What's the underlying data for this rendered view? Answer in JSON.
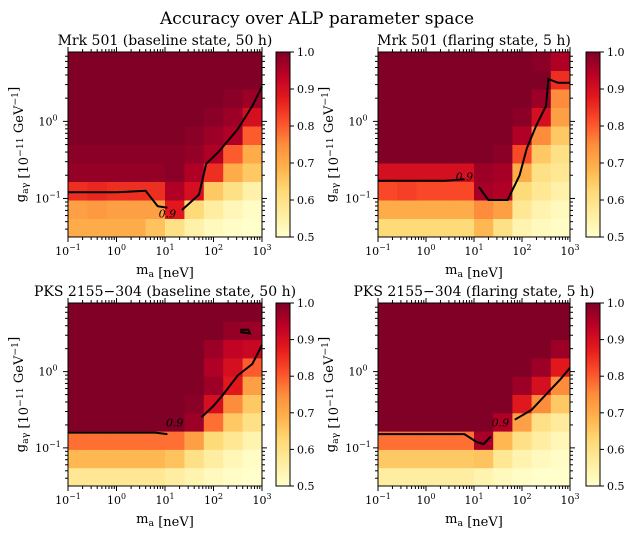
{
  "figure": {
    "suptitle": "Accuracy over ALP parameter space"
  },
  "colormap": {
    "name": "YlOrRd",
    "stops": [
      "#ffffcc",
      "#ffeda0",
      "#fed976",
      "#feb24c",
      "#fd8d3c",
      "#fc4e2a",
      "#e31a1c",
      "#bd0026",
      "#800026"
    ]
  },
  "chart_data": [
    {
      "type": "heatmap",
      "title": "Mrk 501 (baseline state, 50 h)",
      "xlabel": "m_a [neV]",
      "ylabel": "g_aγ [10^-11 GeV^-1]",
      "x_log_range": [
        -1,
        3
      ],
      "y_log_range": [
        -1.5,
        0.9
      ],
      "x_ticks": [
        "10^-1",
        "10^0",
        "10^1",
        "10^2",
        "10^3"
      ],
      "y_ticks": [
        "10^-1",
        "10^0"
      ],
      "colorbar_ticks": [
        "0.5",
        "0.6",
        "0.7",
        "0.8",
        "0.9",
        "1.0"
      ],
      "colorbar_range": [
        0.5,
        1.0
      ],
      "contour_label": "0.9",
      "grid_rows_low_to_high_g": [
        [
          0.7,
          0.7,
          0.7,
          0.7,
          0.66,
          0.6,
          0.55,
          0.52,
          0.51,
          0.5
        ],
        [
          0.72,
          0.73,
          0.72,
          0.72,
          0.72,
          0.88,
          0.62,
          0.56,
          0.53,
          0.51
        ],
        [
          0.85,
          0.86,
          0.85,
          0.85,
          0.85,
          0.95,
          0.9,
          0.65,
          0.6,
          0.55
        ],
        [
          0.98,
          0.98,
          0.98,
          0.98,
          0.98,
          0.99,
          0.95,
          0.85,
          0.7,
          0.65
        ],
        [
          0.99,
          0.99,
          0.99,
          0.99,
          0.99,
          0.99,
          0.98,
          0.95,
          0.8,
          0.7
        ],
        [
          1.0,
          1.0,
          1.0,
          1.0,
          1.0,
          1.0,
          0.99,
          0.97,
          0.95,
          0.8
        ],
        [
          1.0,
          1.0,
          1.0,
          1.0,
          1.0,
          1.0,
          1.0,
          0.99,
          0.97,
          0.9
        ],
        [
          1.0,
          1.0,
          1.0,
          1.0,
          1.0,
          1.0,
          1.0,
          1.0,
          0.99,
          0.97
        ],
        [
          1.0,
          1.0,
          1.0,
          1.0,
          1.0,
          1.0,
          1.0,
          1.0,
          1.0,
          1.0
        ],
        [
          1.0,
          1.0,
          1.0,
          1.0,
          1.0,
          1.0,
          1.0,
          1.0,
          1.0,
          1.0
        ]
      ],
      "contours": [
        [
          [
            -1.0,
            -0.92
          ],
          [
            0.0,
            -0.92
          ],
          [
            0.6,
            -0.9
          ],
          [
            0.85,
            -1.1
          ],
          [
            1.05,
            -1.12
          ]
        ],
        [
          [
            1.35,
            -1.15
          ],
          [
            1.7,
            -0.95
          ],
          [
            1.85,
            -0.55
          ],
          [
            2.1,
            -0.4
          ],
          [
            2.5,
            -0.1
          ],
          [
            2.8,
            0.2
          ],
          [
            3.0,
            0.45
          ]
        ]
      ],
      "contour_label_at": [
        1.05,
        -1.25
      ]
    },
    {
      "type": "heatmap",
      "title": "Mrk 501 (flaring state, 5 h)",
      "xlabel": "m_a [neV]",
      "ylabel": "g_aγ [10^-11 GeV^-1]",
      "x_log_range": [
        -1,
        3
      ],
      "y_log_range": [
        -1.5,
        0.9
      ],
      "x_ticks": [
        "10^-1",
        "10^0",
        "10^1",
        "10^2",
        "10^3"
      ],
      "y_ticks": [
        "10^-1",
        "10^0"
      ],
      "colorbar_ticks": [
        "0.5",
        "0.6",
        "0.7",
        "0.8",
        "0.9",
        "1.0"
      ],
      "colorbar_range": [
        0.5,
        1.0
      ],
      "contour_label": "0.9",
      "grid_rows_low_to_high_g": [
        [
          0.62,
          0.62,
          0.62,
          0.62,
          0.62,
          0.68,
          0.6,
          0.54,
          0.52,
          0.51
        ],
        [
          0.7,
          0.7,
          0.7,
          0.7,
          0.7,
          0.75,
          0.72,
          0.58,
          0.54,
          0.52
        ],
        [
          0.82,
          0.83,
          0.82,
          0.82,
          0.82,
          0.96,
          0.95,
          0.62,
          0.58,
          0.55
        ],
        [
          0.9,
          0.9,
          0.9,
          0.9,
          0.9,
          0.97,
          0.96,
          0.7,
          0.6,
          0.58
        ],
        [
          1.0,
          1.0,
          1.0,
          1.0,
          1.0,
          1.0,
          0.99,
          0.82,
          0.65,
          0.6
        ],
        [
          1.0,
          1.0,
          1.0,
          1.0,
          1.0,
          1.0,
          1.0,
          0.95,
          0.75,
          0.65
        ],
        [
          1.0,
          1.0,
          1.0,
          1.0,
          1.0,
          1.0,
          1.0,
          0.99,
          0.9,
          0.72
        ],
        [
          1.0,
          1.0,
          1.0,
          1.0,
          1.0,
          1.0,
          1.0,
          1.0,
          0.97,
          0.75
        ],
        [
          1.0,
          1.0,
          1.0,
          1.0,
          1.0,
          1.0,
          1.0,
          1.0,
          1.0,
          0.85
        ],
        [
          1.0,
          1.0,
          1.0,
          1.0,
          1.0,
          1.0,
          1.0,
          1.0,
          0.99,
          0.95
        ]
      ],
      "contours": [
        [
          [
            -1.0,
            -0.77
          ],
          [
            0.4,
            -0.77
          ],
          [
            0.8,
            -0.75
          ]
        ],
        [
          [
            1.1,
            -0.85
          ],
          [
            1.3,
            -1.02
          ],
          [
            1.7,
            -1.02
          ],
          [
            1.95,
            -0.7
          ],
          [
            2.1,
            -0.35
          ],
          [
            2.3,
            -0.05
          ],
          [
            2.5,
            0.2
          ],
          [
            2.55,
            0.55
          ],
          [
            2.75,
            0.5
          ],
          [
            3.0,
            0.5
          ]
        ]
      ],
      "contour_label_at": [
        0.8,
        -0.77
      ]
    },
    {
      "type": "heatmap",
      "title": "PKS 2155−304 (baseline state, 50 h)",
      "xlabel": "m_a [neV]",
      "ylabel": "g_aγ [10^-11 GeV^-1]",
      "x_log_range": [
        -1,
        3
      ],
      "y_log_range": [
        -1.5,
        0.9
      ],
      "x_ticks": [
        "10^-1",
        "10^0",
        "10^1",
        "10^2",
        "10^3"
      ],
      "y_ticks": [
        "10^-1",
        "10^0"
      ],
      "colorbar_ticks": [
        "0.5",
        "0.6",
        "0.7",
        "0.8",
        "0.9",
        "1.0"
      ],
      "colorbar_range": [
        0.5,
        1.0
      ],
      "contour_label": "0.9",
      "grid_rows_low_to_high_g": [
        [
          0.58,
          0.58,
          0.58,
          0.58,
          0.58,
          0.56,
          0.54,
          0.52,
          0.51,
          0.5
        ],
        [
          0.68,
          0.68,
          0.68,
          0.68,
          0.68,
          0.66,
          0.6,
          0.56,
          0.53,
          0.51
        ],
        [
          0.78,
          0.78,
          0.78,
          0.78,
          0.78,
          0.78,
          0.72,
          0.62,
          0.58,
          0.54
        ],
        [
          1.0,
          1.0,
          1.0,
          1.0,
          1.0,
          1.0,
          0.97,
          0.78,
          0.65,
          0.6
        ],
        [
          1.0,
          1.0,
          1.0,
          1.0,
          1.0,
          1.0,
          0.99,
          0.9,
          0.75,
          0.65
        ],
        [
          1.0,
          1.0,
          1.0,
          1.0,
          1.0,
          1.0,
          1.0,
          0.97,
          0.88,
          0.72
        ],
        [
          1.0,
          1.0,
          1.0,
          1.0,
          1.0,
          1.0,
          1.0,
          0.95,
          0.9,
          0.8
        ],
        [
          1.0,
          1.0,
          1.0,
          1.0,
          1.0,
          1.0,
          1.0,
          0.97,
          0.93,
          0.92
        ],
        [
          1.0,
          1.0,
          1.0,
          1.0,
          1.0,
          1.0,
          1.0,
          1.0,
          0.98,
          0.97
        ],
        [
          1.0,
          1.0,
          1.0,
          1.0,
          1.0,
          1.0,
          1.0,
          1.0,
          1.0,
          1.0
        ]
      ],
      "contours": [
        [
          [
            -1.0,
            -0.8
          ],
          [
            0.0,
            -0.8
          ],
          [
            0.8,
            -0.8
          ],
          [
            1.05,
            -0.82
          ]
        ],
        [
          [
            1.75,
            -0.6
          ],
          [
            2.0,
            -0.45
          ],
          [
            2.2,
            -0.3
          ],
          [
            2.5,
            -0.05
          ],
          [
            2.8,
            0.1
          ],
          [
            3.0,
            0.35
          ]
        ],
        [
          [
            2.55,
            0.52
          ],
          [
            2.75,
            0.5
          ],
          [
            2.72,
            0.55
          ],
          [
            2.55,
            0.55
          ]
        ]
      ],
      "contour_label_at": [
        1.2,
        -0.72
      ]
    },
    {
      "type": "heatmap",
      "title": "PKS 2155−304 (flaring state, 5 h)",
      "xlabel": "m_a [neV]",
      "ylabel": "g_aγ [10^-11 GeV^-1]",
      "x_log_range": [
        -1,
        3
      ],
      "y_log_range": [
        -1.5,
        0.9
      ],
      "x_ticks": [
        "10^-1",
        "10^0",
        "10^1",
        "10^2",
        "10^3"
      ],
      "y_ticks": [
        "10^-1",
        "10^0"
      ],
      "colorbar_ticks": [
        "0.5",
        "0.6",
        "0.7",
        "0.8",
        "0.9",
        "1.0"
      ],
      "colorbar_range": [
        0.5,
        1.0
      ],
      "contour_label": "0.9",
      "grid_rows_low_to_high_g": [
        [
          0.56,
          0.56,
          0.56,
          0.56,
          0.56,
          0.54,
          0.52,
          0.51,
          0.5,
          0.5
        ],
        [
          0.65,
          0.65,
          0.65,
          0.65,
          0.65,
          0.66,
          0.58,
          0.54,
          0.52,
          0.51
        ],
        [
          0.78,
          0.78,
          0.78,
          0.78,
          0.78,
          0.96,
          0.68,
          0.6,
          0.56,
          0.53
        ],
        [
          1.0,
          1.0,
          1.0,
          1.0,
          1.0,
          1.0,
          0.95,
          0.72,
          0.6,
          0.57
        ],
        [
          1.0,
          1.0,
          1.0,
          1.0,
          1.0,
          1.0,
          1.0,
          0.88,
          0.75,
          0.65
        ],
        [
          1.0,
          1.0,
          1.0,
          1.0,
          1.0,
          1.0,
          1.0,
          0.97,
          0.9,
          0.75
        ],
        [
          1.0,
          1.0,
          1.0,
          1.0,
          1.0,
          1.0,
          1.0,
          1.0,
          0.97,
          0.88
        ],
        [
          1.0,
          1.0,
          1.0,
          1.0,
          1.0,
          1.0,
          1.0,
          1.0,
          1.0,
          0.97
        ],
        [
          1.0,
          1.0,
          1.0,
          1.0,
          1.0,
          1.0,
          1.0,
          1.0,
          1.0,
          1.0
        ],
        [
          1.0,
          1.0,
          1.0,
          1.0,
          1.0,
          1.0,
          1.0,
          1.0,
          1.0,
          1.0
        ]
      ],
      "contours": [
        [
          [
            -1.0,
            -0.82
          ],
          [
            0.8,
            -0.82
          ],
          [
            1.05,
            -0.92
          ],
          [
            1.2,
            -0.95
          ],
          [
            1.35,
            -0.85
          ]
        ],
        [
          [
            1.85,
            -0.63
          ],
          [
            2.2,
            -0.5
          ],
          [
            2.5,
            -0.3
          ],
          [
            2.8,
            -0.1
          ],
          [
            3.0,
            0.05
          ]
        ]
      ],
      "contour_label_at": [
        1.55,
        -0.72
      ]
    }
  ]
}
